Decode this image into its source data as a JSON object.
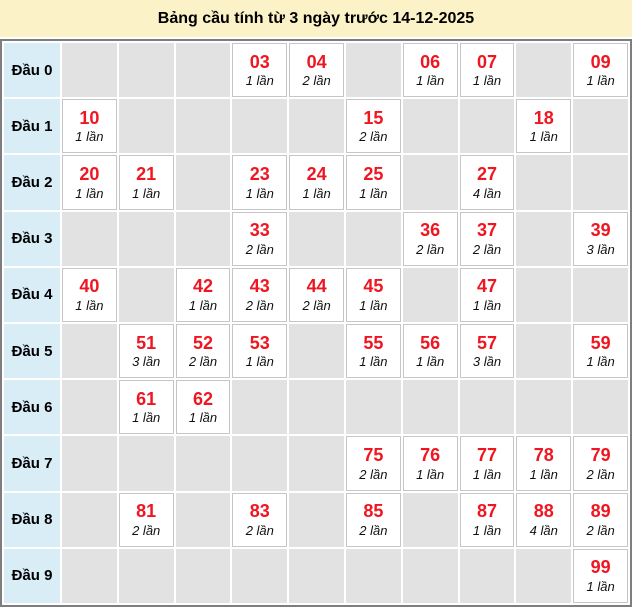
{
  "title": "Bảng cầu tính từ 3 ngày trước 14-12-2025",
  "colors": {
    "title_bg": "#fbf2c7",
    "header_bg": "#d9edf7",
    "empty_bg": "#e2e2e2",
    "number_red": "#ef1621",
    "table_border": "#7e7e7e"
  },
  "table": {
    "columns": 10,
    "count_unit": "lần",
    "rows": [
      {
        "label": "Đầu 0",
        "cells": [
          null,
          null,
          null,
          {
            "num": "03",
            "count": "1 lần"
          },
          {
            "num": "04",
            "count": "2 lần"
          },
          null,
          {
            "num": "06",
            "count": "1 lần"
          },
          {
            "num": "07",
            "count": "1 lần"
          },
          null,
          {
            "num": "09",
            "count": "1 lần"
          }
        ]
      },
      {
        "label": "Đầu 1",
        "cells": [
          {
            "num": "10",
            "count": "1 lần"
          },
          null,
          null,
          null,
          null,
          {
            "num": "15",
            "count": "2 lần"
          },
          null,
          null,
          {
            "num": "18",
            "count": "1 lần"
          },
          null
        ]
      },
      {
        "label": "Đầu 2",
        "cells": [
          {
            "num": "20",
            "count": "1 lần"
          },
          {
            "num": "21",
            "count": "1 lần"
          },
          null,
          {
            "num": "23",
            "count": "1 lần"
          },
          {
            "num": "24",
            "count": "1 lần"
          },
          {
            "num": "25",
            "count": "1 lần"
          },
          null,
          {
            "num": "27",
            "count": "4 lần"
          },
          null,
          null
        ]
      },
      {
        "label": "Đầu 3",
        "cells": [
          null,
          null,
          null,
          {
            "num": "33",
            "count": "2 lần"
          },
          null,
          null,
          {
            "num": "36",
            "count": "2 lần"
          },
          {
            "num": "37",
            "count": "2 lần"
          },
          null,
          {
            "num": "39",
            "count": "3 lần"
          }
        ]
      },
      {
        "label": "Đầu 4",
        "cells": [
          {
            "num": "40",
            "count": "1 lần"
          },
          null,
          {
            "num": "42",
            "count": "1 lần"
          },
          {
            "num": "43",
            "count": "2 lần"
          },
          {
            "num": "44",
            "count": "2 lần"
          },
          {
            "num": "45",
            "count": "1 lần"
          },
          null,
          {
            "num": "47",
            "count": "1 lần"
          },
          null,
          null
        ]
      },
      {
        "label": "Đầu 5",
        "cells": [
          null,
          {
            "num": "51",
            "count": "3 lần"
          },
          {
            "num": "52",
            "count": "2 lần"
          },
          {
            "num": "53",
            "count": "1 lần"
          },
          null,
          {
            "num": "55",
            "count": "1 lần"
          },
          {
            "num": "56",
            "count": "1 lần"
          },
          {
            "num": "57",
            "count": "3 lần"
          },
          null,
          {
            "num": "59",
            "count": "1 lần"
          }
        ]
      },
      {
        "label": "Đầu 6",
        "cells": [
          null,
          {
            "num": "61",
            "count": "1 lần"
          },
          {
            "num": "62",
            "count": "1 lần"
          },
          null,
          null,
          null,
          null,
          null,
          null,
          null
        ]
      },
      {
        "label": "Đầu 7",
        "cells": [
          null,
          null,
          null,
          null,
          null,
          {
            "num": "75",
            "count": "2 lần"
          },
          {
            "num": "76",
            "count": "1 lần"
          },
          {
            "num": "77",
            "count": "1 lần"
          },
          {
            "num": "78",
            "count": "1 lần"
          },
          {
            "num": "79",
            "count": "2 lần"
          }
        ]
      },
      {
        "label": "Đầu 8",
        "cells": [
          null,
          {
            "num": "81",
            "count": "2 lần"
          },
          null,
          {
            "num": "83",
            "count": "2 lần"
          },
          null,
          {
            "num": "85",
            "count": "2 lần"
          },
          null,
          {
            "num": "87",
            "count": "1 lần"
          },
          {
            "num": "88",
            "count": "4 lần"
          },
          {
            "num": "89",
            "count": "2 lần"
          }
        ]
      },
      {
        "label": "Đầu 9",
        "cells": [
          null,
          null,
          null,
          null,
          null,
          null,
          null,
          null,
          null,
          {
            "num": "99",
            "count": "1 lần"
          }
        ]
      }
    ]
  }
}
